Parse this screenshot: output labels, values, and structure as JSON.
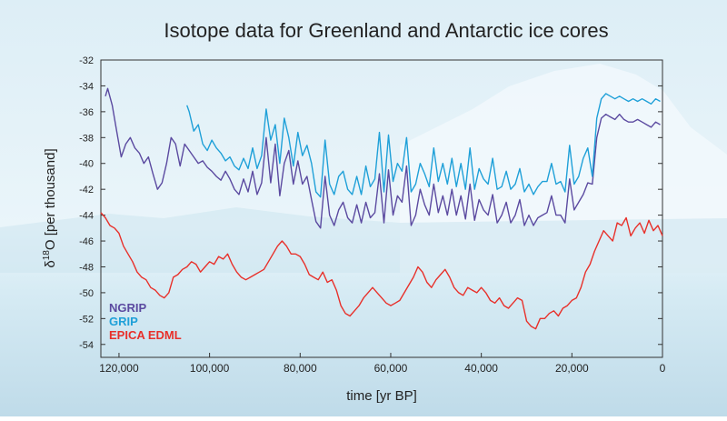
{
  "chart_data": {
    "type": "line",
    "title": "Isotope data for Greenland and Antarctic ice cores",
    "xlabel": "time [yr BP]",
    "ylabel_prefix": "δ",
    "ylabel_sup": "18",
    "ylabel_suffix": "O [per thousand]",
    "xlim": [
      124000,
      0
    ],
    "ylim": [
      -55,
      -32
    ],
    "x_ticks": [
      120000,
      100000,
      80000,
      60000,
      40000,
      20000,
      0
    ],
    "x_tick_labels": [
      "120,000",
      "100,000",
      "80,000",
      "60,000",
      "40,000",
      "20,000",
      "0"
    ],
    "y_ticks": [
      -32,
      -34,
      -36,
      -38,
      -40,
      -42,
      -44,
      -46,
      -48,
      -50,
      -52,
      -54
    ],
    "y_tick_labels": [
      "-32",
      "-34",
      "-36",
      "-38",
      "-40",
      "-42",
      "-44",
      "-46",
      "-48",
      "-50",
      "-52",
      "-54"
    ],
    "legend_position": "bottom-left",
    "series": [
      {
        "name": "NGRIP",
        "color": "#5b4aa0",
        "x": [
          123000,
          122500,
          121500,
          120500,
          119500,
          118500,
          117500,
          116500,
          115500,
          114500,
          113500,
          112500,
          111500,
          110500,
          109500,
          108500,
          107500,
          106500,
          105500,
          104500,
          103500,
          102500,
          101500,
          100500,
          99500,
          98500,
          97500,
          96500,
          95500,
          94500,
          93500,
          92500,
          91500,
          90500,
          89500,
          88500,
          87500,
          86500,
          85500,
          84500,
          83500,
          82500,
          81500,
          80500,
          79500,
          78500,
          77500,
          76500,
          75500,
          74500,
          73500,
          72500,
          71500,
          70500,
          69500,
          68500,
          67500,
          66500,
          65500,
          64500,
          63500,
          62500,
          61500,
          60500,
          59500,
          58500,
          57500,
          56500,
          55500,
          54500,
          53500,
          52500,
          51500,
          50500,
          49500,
          48500,
          47500,
          46500,
          45500,
          44500,
          43500,
          42500,
          41500,
          40500,
          39500,
          38500,
          37500,
          36500,
          35500,
          34500,
          33500,
          32500,
          31500,
          30500,
          29500,
          28500,
          27500,
          26500,
          25500,
          24500,
          23500,
          22500,
          21500,
          20500,
          19500,
          18500,
          17500,
          16500,
          15500,
          14500,
          13500,
          12500,
          11500,
          10500,
          9500,
          8500,
          7500,
          6500,
          5500,
          4500,
          3500,
          2500,
          1500,
          500
        ],
        "values": [
          -34.8,
          -34.2,
          -35.5,
          -37.5,
          -39.5,
          -38.5,
          -38.0,
          -38.8,
          -39.2,
          -40.0,
          -39.5,
          -40.8,
          -42.0,
          -41.5,
          -40.0,
          -38.0,
          -38.5,
          -40.2,
          -38.5,
          -39.0,
          -39.5,
          -40.0,
          -39.8,
          -40.3,
          -40.6,
          -41.0,
          -41.3,
          -40.6,
          -41.2,
          -42.0,
          -42.4,
          -41.2,
          -42.2,
          -40.6,
          -42.4,
          -41.5,
          -38.0,
          -41.5,
          -38.5,
          -42.5,
          -40.0,
          -39.0,
          -41.6,
          -39.8,
          -41.6,
          -41.0,
          -42.8,
          -44.5,
          -45.0,
          -41.0,
          -44.0,
          -44.8,
          -43.6,
          -43.0,
          -44.2,
          -44.6,
          -43.2,
          -44.6,
          -43.0,
          -44.2,
          -43.8,
          -40.8,
          -44.6,
          -40.5,
          -44.0,
          -42.5,
          -43.0,
          -40.2,
          -44.8,
          -44.0,
          -42.0,
          -43.2,
          -44.0,
          -41.6,
          -43.8,
          -42.5,
          -44.0,
          -42.0,
          -44.0,
          -42.5,
          -44.3,
          -41.6,
          -44.4,
          -42.8,
          -43.6,
          -44.0,
          -42.4,
          -44.6,
          -44.0,
          -43.0,
          -44.6,
          -44.0,
          -42.8,
          -44.8,
          -44.0,
          -44.8,
          -44.2,
          -44.0,
          -43.8,
          -42.5,
          -44.0,
          -44.0,
          -44.6,
          -41.2,
          -43.6,
          -43.0,
          -42.4,
          -41.5,
          -41.6,
          -38.0,
          -36.5,
          -36.2,
          -36.4,
          -36.6,
          -36.2,
          -36.6,
          -36.8,
          -36.8,
          -36.6,
          -36.8,
          -37.0,
          -37.2,
          -36.8,
          -37.0
        ]
      },
      {
        "name": "GRIP",
        "color": "#1fa0d8",
        "x": [
          105000,
          104500,
          103500,
          102500,
          101500,
          100500,
          99500,
          98500,
          97500,
          96500,
          95500,
          94500,
          93500,
          92500,
          91500,
          90500,
          89500,
          88500,
          87500,
          86500,
          85500,
          84500,
          83500,
          82500,
          81500,
          80500,
          79500,
          78500,
          77500,
          76500,
          75500,
          74500,
          73500,
          72500,
          71500,
          70500,
          69500,
          68500,
          67500,
          66500,
          65500,
          64500,
          63500,
          62500,
          61500,
          60500,
          59500,
          58500,
          57500,
          56500,
          55500,
          54500,
          53500,
          52500,
          51500,
          50500,
          49500,
          48500,
          47500,
          46500,
          45500,
          44500,
          43500,
          42500,
          41500,
          40500,
          39500,
          38500,
          37500,
          36500,
          35500,
          34500,
          33500,
          32500,
          31500,
          30500,
          29500,
          28500,
          27500,
          26500,
          25500,
          24500,
          23500,
          22500,
          21500,
          20500,
          19500,
          18500,
          17500,
          16500,
          15500,
          14500,
          13500,
          12500,
          11500,
          10500,
          9500,
          8500,
          7500,
          6500,
          5500,
          4500,
          3500,
          2500,
          1500,
          500
        ],
        "values": [
          -35.5,
          -36.0,
          -37.5,
          -37.0,
          -38.5,
          -39.0,
          -38.2,
          -38.8,
          -39.2,
          -39.8,
          -39.5,
          -40.2,
          -40.5,
          -39.6,
          -40.4,
          -38.8,
          -40.4,
          -39.4,
          -35.8,
          -38.2,
          -37.0,
          -40.0,
          -36.5,
          -38.0,
          -40.2,
          -37.6,
          -39.4,
          -38.6,
          -40.0,
          -42.2,
          -42.6,
          -38.2,
          -41.6,
          -42.4,
          -41.0,
          -40.6,
          -42.0,
          -42.4,
          -41.0,
          -42.4,
          -40.2,
          -41.8,
          -41.2,
          -37.6,
          -42.2,
          -37.8,
          -41.4,
          -40.0,
          -40.6,
          -38.0,
          -42.2,
          -41.6,
          -40.0,
          -40.8,
          -41.8,
          -38.8,
          -41.4,
          -40.0,
          -41.6,
          -39.6,
          -41.8,
          -40.0,
          -42.0,
          -38.8,
          -42.0,
          -40.4,
          -41.2,
          -41.6,
          -39.6,
          -42.0,
          -41.8,
          -40.6,
          -42.0,
          -41.6,
          -40.4,
          -42.2,
          -41.6,
          -42.4,
          -41.8,
          -41.4,
          -41.4,
          -40.0,
          -41.6,
          -41.4,
          -42.2,
          -38.6,
          -41.6,
          -41.0,
          -39.6,
          -38.8,
          -41.0,
          -36.5,
          -35.0,
          -34.6,
          -34.8,
          -35.0,
          -34.8,
          -35.0,
          -35.2,
          -35.0,
          -35.2,
          -35.0,
          -35.2,
          -35.4,
          -35.0,
          -35.2
        ]
      },
      {
        "name": "EPICA EDML",
        "color": "#e8302a",
        "x": [
          124000,
          123000,
          122000,
          121000,
          120000,
          119000,
          118000,
          117000,
          116000,
          115000,
          114000,
          113000,
          112000,
          111000,
          110000,
          109000,
          108000,
          107000,
          106000,
          105000,
          104000,
          103000,
          102000,
          101000,
          100000,
          99000,
          98000,
          97000,
          96000,
          95000,
          94000,
          93000,
          92000,
          91000,
          90000,
          89000,
          88000,
          87000,
          86000,
          85000,
          84000,
          83000,
          82000,
          81000,
          80000,
          79000,
          78000,
          77000,
          76000,
          75000,
          74000,
          73000,
          72000,
          71000,
          70000,
          69000,
          68000,
          67000,
          66000,
          65000,
          64000,
          63000,
          62000,
          61000,
          60000,
          59000,
          58000,
          57000,
          56000,
          55000,
          54000,
          53000,
          52000,
          51000,
          50000,
          49000,
          48000,
          47000,
          46000,
          45000,
          44000,
          43000,
          42000,
          41000,
          40000,
          39000,
          38000,
          37000,
          36000,
          35000,
          34000,
          33000,
          32000,
          31000,
          30000,
          29000,
          28000,
          27000,
          26000,
          25000,
          24000,
          23000,
          22000,
          21000,
          20000,
          19000,
          18000,
          17000,
          16000,
          15000,
          14000,
          13000,
          12000,
          11000,
          10000,
          9000,
          8000,
          7000,
          6000,
          5000,
          4000,
          3000,
          2000,
          1000,
          0
        ],
        "values": [
          -43.8,
          -44.2,
          -44.8,
          -45.0,
          -45.4,
          -46.4,
          -47.0,
          -47.6,
          -48.4,
          -48.8,
          -49.0,
          -49.6,
          -49.8,
          -50.2,
          -50.4,
          -50.0,
          -48.8,
          -48.6,
          -48.2,
          -48.0,
          -47.6,
          -47.8,
          -48.4,
          -48.0,
          -47.6,
          -47.8,
          -47.2,
          -47.4,
          -47.0,
          -47.8,
          -48.4,
          -48.8,
          -49.0,
          -48.8,
          -48.6,
          -48.4,
          -48.2,
          -47.6,
          -47.0,
          -46.4,
          -46.0,
          -46.4,
          -47.0,
          -47.0,
          -47.2,
          -47.8,
          -48.6,
          -48.8,
          -49.0,
          -48.4,
          -49.2,
          -49.0,
          -49.8,
          -51.0,
          -51.6,
          -51.8,
          -51.4,
          -51.0,
          -50.4,
          -50.0,
          -49.6,
          -50.0,
          -50.4,
          -50.8,
          -51.0,
          -50.8,
          -50.6,
          -50.0,
          -49.4,
          -48.8,
          -48.0,
          -48.4,
          -49.2,
          -49.6,
          -49.0,
          -48.6,
          -48.2,
          -48.8,
          -49.6,
          -50.0,
          -50.2,
          -49.6,
          -49.8,
          -50.0,
          -49.6,
          -50.0,
          -50.6,
          -50.8,
          -50.4,
          -51.0,
          -51.2,
          -50.8,
          -50.4,
          -50.6,
          -52.2,
          -52.6,
          -52.8,
          -52.0,
          -52.0,
          -51.6,
          -51.4,
          -51.8,
          -51.2,
          -51.0,
          -50.6,
          -50.4,
          -49.6,
          -48.4,
          -47.8,
          -46.8,
          -46.0,
          -45.2,
          -45.6,
          -46.0,
          -44.6,
          -44.8,
          -44.2,
          -45.6,
          -45.0,
          -44.6,
          -45.4,
          -44.4,
          -45.2,
          -44.8,
          -45.6
        ]
      }
    ]
  }
}
